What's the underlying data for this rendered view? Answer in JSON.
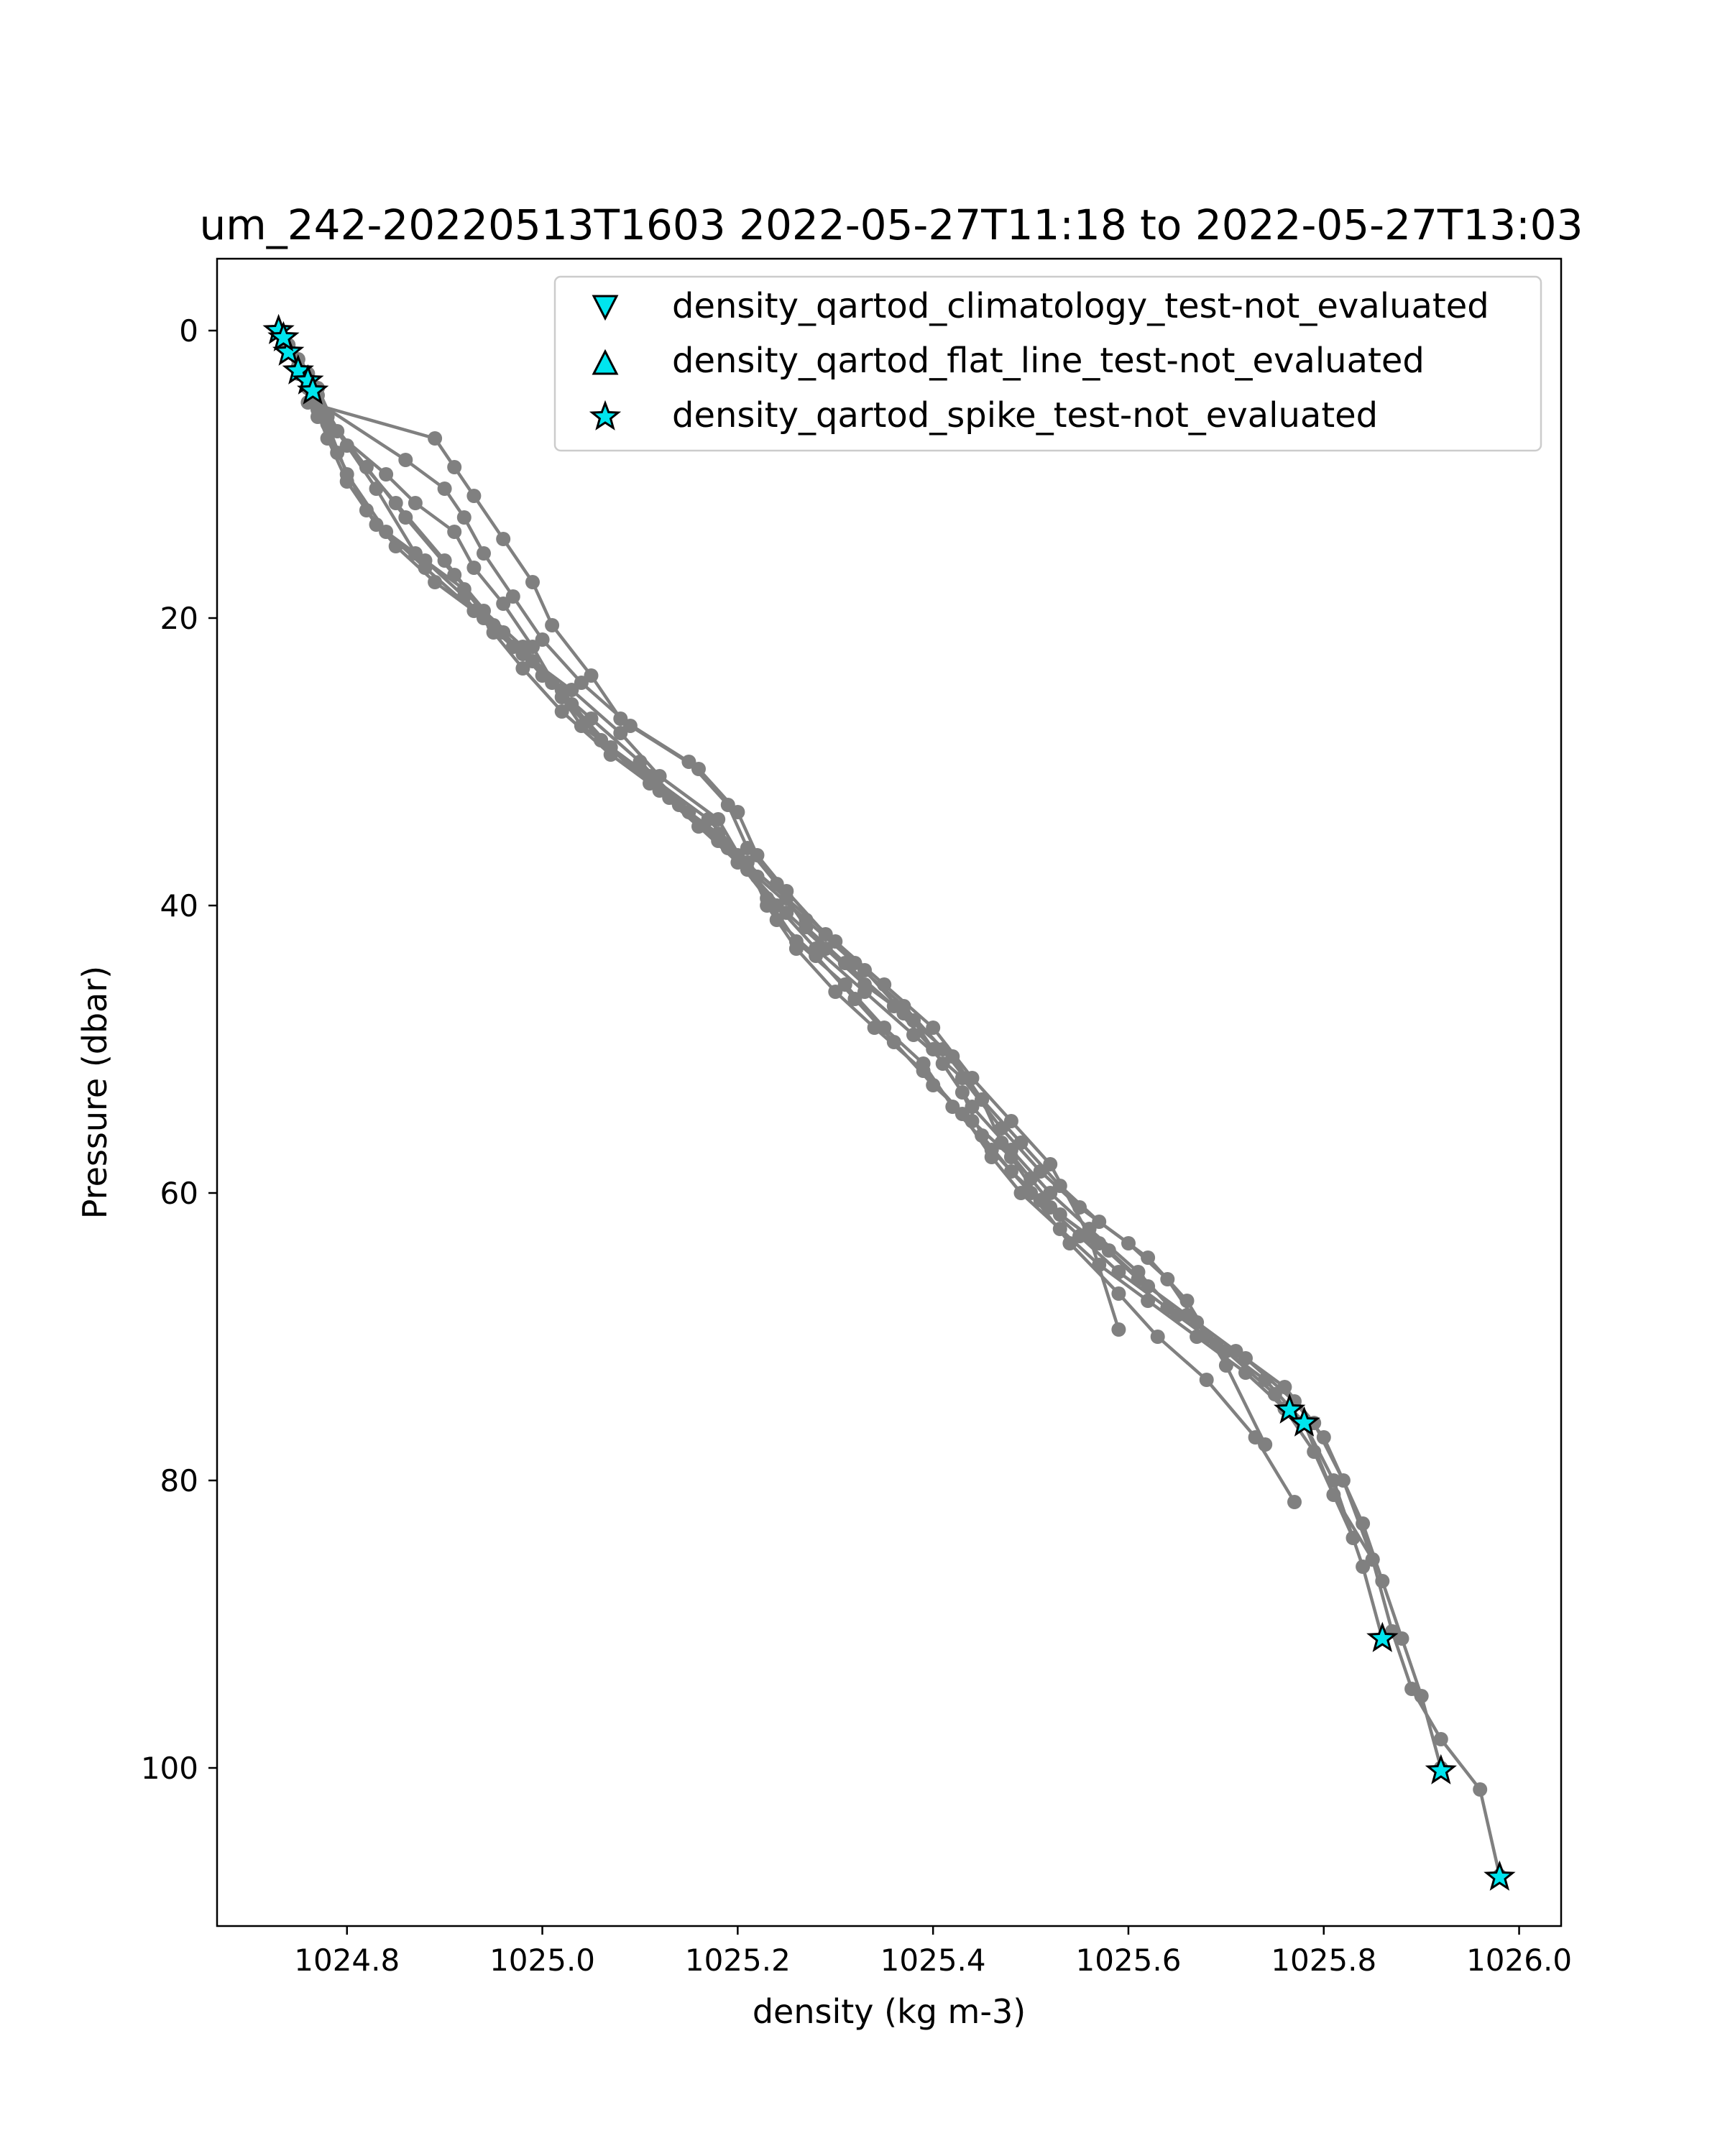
{
  "chart_data": {
    "type": "line",
    "title": "um_242-20220513T1603 2022-05-27T11:18 to 2022-05-27T13:03",
    "xlabel": "density (kg m-3)",
    "ylabel": "Pressure (dbar)",
    "xlim": [
      1024.667,
      1026.043
    ],
    "ylim": [
      111,
      -5
    ],
    "y_inverted": true,
    "xticks": [
      1024.8,
      1025.0,
      1025.2,
      1025.4,
      1025.6,
      1025.8,
      1026.0
    ],
    "xtick_labels": [
      "1024.8",
      "1025.0",
      "1025.2",
      "1025.4",
      "1025.6",
      "1025.8",
      "1026.0"
    ],
    "yticks": [
      0,
      20,
      40,
      60,
      80,
      100
    ],
    "ytick_labels": [
      "0",
      "20",
      "40",
      "60",
      "80",
      "100"
    ],
    "grid": false,
    "legend_position": "top-right",
    "line_color": "#808080",
    "flag_color": "#00e5ee",
    "series": [
      {
        "x": [
          1024.73,
          1024.74,
          1024.75,
          1024.76,
          1024.76,
          1024.89,
          1024.91,
          1024.93,
          1024.96,
          1024.99,
          1025.01,
          1025.05,
          1025.08,
          1025.15,
          1025.19,
          1025.21,
          1025.24,
          1025.27,
          1025.31,
          1025.36,
          1025.4,
          1025.43,
          1025.45,
          1025.48,
          1025.52,
          1025.57,
          1025.61,
          1025.66,
          1025.71,
          1025.76,
          1025.79,
          1025.82,
          1025.85,
          1025.87,
          1025.89,
          1025.92,
          1025.96,
          1025.98
        ],
        "y": [
          0,
          1,
          2,
          3,
          5,
          7.5,
          9.5,
          11.5,
          14.5,
          17.5,
          20.5,
          24,
          27,
          30,
          33,
          36,
          38.5,
          41.5,
          44,
          47,
          50,
          53,
          56,
          58.5,
          61,
          63.5,
          66,
          68.5,
          71,
          73.5,
          76,
          80,
          85.5,
          90.5,
          94.5,
          98,
          101.5,
          107.5
        ]
      },
      {
        "x": [
          1024.73,
          1024.75,
          1024.77,
          1024.86,
          1024.9,
          1024.92,
          1024.94,
          1024.97,
          1025.0,
          1025.04,
          1025.09,
          1025.16,
          1025.2,
          1025.22,
          1025.25,
          1025.29,
          1025.33,
          1025.37,
          1025.42,
          1025.45,
          1025.47,
          1025.5,
          1025.53,
          1025.58,
          1025.62,
          1025.67,
          1025.72,
          1025.77,
          1025.8,
          1025.84,
          1025.86,
          1025.88,
          1025.9,
          1025.92
        ],
        "y": [
          0,
          2,
          5,
          9,
          11,
          13,
          15.5,
          18.5,
          21.5,
          24.5,
          27.5,
          30.5,
          33.5,
          36.5,
          39,
          42,
          44.5,
          47.5,
          50.5,
          53.5,
          56.5,
          59,
          61.5,
          64,
          66.5,
          69,
          71.5,
          74.5,
          77,
          83,
          87,
          91,
          95,
          100
        ]
      },
      {
        "x": [
          1024.74,
          1024.75,
          1024.77,
          1024.84,
          1024.87,
          1024.91,
          1024.93,
          1024.96,
          1024.99,
          1025.02,
          1025.06,
          1025.11,
          1025.17,
          1025.21,
          1025.23,
          1025.26,
          1025.3,
          1025.34,
          1025.39,
          1025.43,
          1025.46,
          1025.49,
          1025.53,
          1025.57,
          1025.62,
          1025.67,
          1025.72,
          1025.76,
          1025.78,
          1025.81,
          1025.84,
          1025.86
        ],
        "y": [
          1,
          3,
          6,
          10,
          12,
          14,
          16.5,
          19,
          22,
          25.5,
          28.5,
          31,
          34,
          37,
          40,
          43,
          46,
          48.5,
          51.5,
          54.5,
          57.5,
          60,
          62.5,
          65,
          67.5,
          70,
          72.5,
          75,
          76,
          80,
          86,
          91
        ]
      },
      {
        "x": [
          1024.74,
          1024.76,
          1024.78,
          1024.8,
          1024.83,
          1024.88,
          1024.92,
          1024.95,
          1024.98,
          1025.02,
          1025.07,
          1025.13,
          1025.18,
          1025.22,
          1025.24,
          1025.28,
          1025.32,
          1025.36,
          1025.4,
          1025.44,
          1025.48,
          1025.51,
          1025.55,
          1025.59,
          1025.64,
          1025.69,
          1025.74,
          1025.78,
          1025.81,
          1025.85
        ],
        "y": [
          1.5,
          4,
          7.5,
          10.5,
          13.5,
          16,
          18.5,
          21,
          23.5,
          26.5,
          29.5,
          32.5,
          35.5,
          38,
          41,
          43.5,
          46.5,
          49.5,
          52.5,
          55,
          57.5,
          60.5,
          63,
          65.5,
          68,
          70.5,
          73,
          76,
          81,
          85.5
        ]
      },
      {
        "x": [
          1024.75,
          1024.77,
          1024.79,
          1024.82,
          1024.85,
          1024.89,
          1024.94,
          1024.98,
          1025.03,
          1025.08,
          1025.12,
          1025.18,
          1025.21,
          1025.25,
          1025.29,
          1025.33,
          1025.38,
          1025.41,
          1025.44,
          1025.48,
          1025.52,
          1025.56,
          1025.61,
          1025.65,
          1025.7,
          1025.75,
          1025.79,
          1025.83
        ],
        "y": [
          2.5,
          5.5,
          8.5,
          12.5,
          15,
          17.5,
          20,
          22.5,
          25,
          28,
          31,
          34,
          37.5,
          40.5,
          43,
          45.5,
          48,
          51,
          54,
          57,
          60,
          62.5,
          65.5,
          68.5,
          71,
          74,
          78,
          84
        ]
      },
      {
        "x": [
          1024.76,
          1024.78,
          1024.8,
          1024.84,
          1024.88,
          1024.93,
          1024.97,
          1025.01,
          1025.04,
          1025.1,
          1025.14,
          1025.19,
          1025.23,
          1025.26,
          1025.31,
          1025.35,
          1025.39,
          1025.42,
          1025.46,
          1025.5,
          1025.54,
          1025.59,
          1025.63,
          1025.68,
          1025.73,
          1025.77
        ],
        "y": [
          3.5,
          6.5,
          10,
          14,
          16.5,
          19.5,
          22,
          24.5,
          27.5,
          30.5,
          33,
          36,
          39.5,
          42.5,
          45.5,
          48.5,
          51,
          54,
          57,
          60,
          63.5,
          67,
          70,
          73,
          77,
          81.5
        ]
      },
      {
        "x": [
          1024.77,
          1024.79,
          1024.83,
          1024.87,
          1024.92,
          1024.95,
          1024.99,
          1025.03,
          1025.07,
          1025.12,
          1025.18,
          1025.22,
          1025.27,
          1025.32,
          1025.37,
          1025.41,
          1025.45,
          1025.49,
          1025.53,
          1025.57,
          1025.62,
          1025.66,
          1025.7,
          1025.74
        ],
        "y": [
          4,
          7,
          11,
          15.5,
          18,
          20.5,
          23,
          26,
          29,
          32,
          35,
          38,
          41,
          44,
          47,
          50,
          53.5,
          56.5,
          59.5,
          62,
          64.5,
          67.5,
          72,
          77.5
        ]
      },
      {
        "x": [
          1024.77,
          1024.8,
          1024.85,
          1024.9,
          1024.94,
          1024.98,
          1025.02,
          1025.06,
          1025.11,
          1025.16,
          1025.2,
          1025.24,
          1025.28,
          1025.33,
          1025.38,
          1025.43,
          1025.47,
          1025.51,
          1025.55,
          1025.6,
          1025.64,
          1025.68
        ],
        "y": [
          4.5,
          8,
          12,
          16,
          19.5,
          22,
          25,
          28.5,
          31.5,
          34.5,
          37,
          40,
          43,
          46,
          49,
          52,
          55.5,
          58.5,
          61,
          63.5,
          66,
          70
        ]
      },
      {
        "x": [
          1024.78,
          1024.82,
          1024.86,
          1024.91,
          1024.96,
          1025.0,
          1025.05,
          1025.1,
          1025.15,
          1025.2,
          1025.25,
          1025.3,
          1025.35,
          1025.4,
          1025.44,
          1025.48,
          1025.52,
          1025.56,
          1025.59
        ],
        "y": [
          6,
          9.5,
          13,
          17,
          21,
          24,
          27,
          30,
          33.5,
          36.5,
          39.5,
          42.5,
          45.5,
          48.5,
          52,
          55,
          58,
          63,
          69.5
        ]
      }
    ],
    "flags": {
      "climatology": {
        "x": [],
        "y": []
      },
      "flat_line": {
        "x": [],
        "y": []
      },
      "spike": {
        "x": [
          1024.73,
          1024.74,
          1024.75,
          1024.76,
          1024.765,
          1024.735,
          1025.765,
          1025.78,
          1025.86,
          1025.92,
          1025.98
        ],
        "y": [
          0,
          1.5,
          2.8,
          3.5,
          4.2,
          0.5,
          75.1,
          76.0,
          91.0,
          100.2,
          107.6
        ]
      }
    },
    "legend": [
      {
        "label": "density_qartod_climatology_test-not_evaluated",
        "marker": "triangle-down"
      },
      {
        "label": "density_qartod_flat_line_test-not_evaluated",
        "marker": "triangle-up"
      },
      {
        "label": "density_qartod_spike_test-not_evaluated",
        "marker": "star"
      }
    ]
  }
}
